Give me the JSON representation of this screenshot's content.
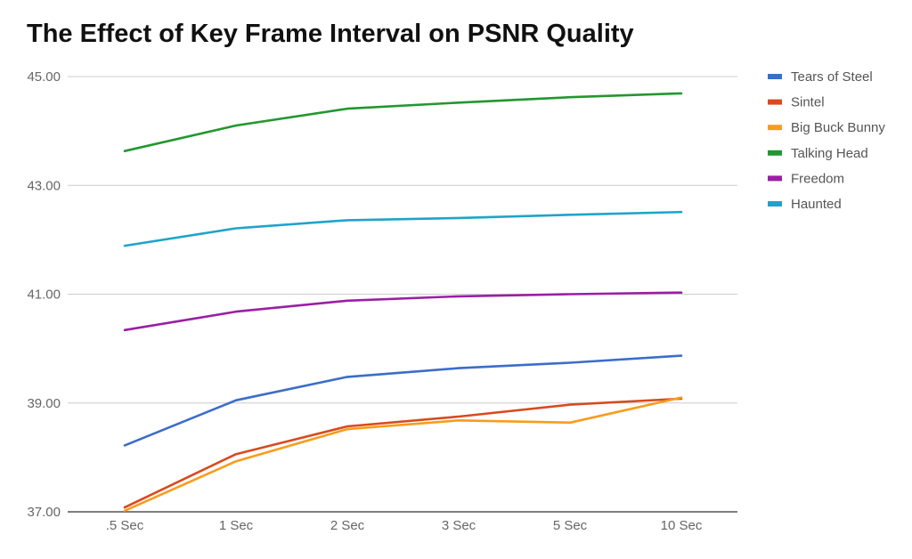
{
  "chart_data": {
    "type": "line",
    "title": "The Effect of Key Frame Interval on PSNR Quality",
    "xlabel": "",
    "ylabel": "",
    "categories": [
      ".5 Sec",
      "1 Sec",
      "2 Sec",
      "3 Sec",
      "5 Sec",
      "10 Sec"
    ],
    "ylim": [
      37.0,
      45.0
    ],
    "yticks": [
      "37.00",
      "39.00",
      "41.00",
      "43.00",
      "45.00"
    ],
    "ytick_values": [
      37,
      39,
      41,
      43,
      45
    ],
    "grid": true,
    "legend_position": "right",
    "series": [
      {
        "name": "Tears of Steel",
        "color": "#3c6dc8",
        "values": [
          38.22,
          39.05,
          39.48,
          39.64,
          39.74,
          39.87
        ]
      },
      {
        "name": "Sintel",
        "color": "#d84a1f",
        "values": [
          37.08,
          38.06,
          38.57,
          38.75,
          38.97,
          39.08
        ]
      },
      {
        "name": "Big Buck Bunny",
        "color": "#f89c1c",
        "values": [
          37.02,
          37.93,
          38.52,
          38.68,
          38.64,
          39.1
        ]
      },
      {
        "name": "Talking Head",
        "color": "#22972f",
        "values": [
          43.63,
          44.1,
          44.41,
          44.52,
          44.62,
          44.69
        ]
      },
      {
        "name": "Freedom",
        "color": "#9a1fa4",
        "values": [
          40.34,
          40.68,
          40.88,
          40.96,
          41.0,
          41.03
        ]
      },
      {
        "name": "Haunted",
        "color": "#1ea4c9",
        "values": [
          41.89,
          42.21,
          42.36,
          42.4,
          42.46,
          42.51
        ]
      }
    ]
  }
}
